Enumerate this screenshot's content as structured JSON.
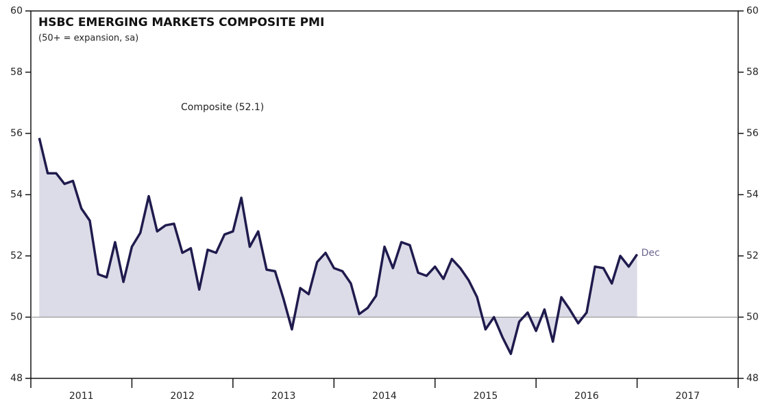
{
  "chart_data": {
    "type": "area_line",
    "title": "HSBC EMERGING MARKETS COMPOSITE PMI",
    "subtitle": "(50+ = expansion, sa)",
    "annotations": [
      "Composite (52.1)",
      "Dec"
    ],
    "x": [
      "2011-01",
      "2011-02",
      "2011-03",
      "2011-04",
      "2011-05",
      "2011-06",
      "2011-07",
      "2011-08",
      "2011-09",
      "2011-10",
      "2011-11",
      "2011-12",
      "2012-01",
      "2012-02",
      "2012-03",
      "2012-04",
      "2012-05",
      "2012-06",
      "2012-07",
      "2012-08",
      "2012-09",
      "2012-10",
      "2012-11",
      "2012-12",
      "2013-01",
      "2013-02",
      "2013-03",
      "2013-04",
      "2013-05",
      "2013-06",
      "2013-07",
      "2013-08",
      "2013-09",
      "2013-10",
      "2013-11",
      "2013-12",
      "2014-01",
      "2014-02",
      "2014-03",
      "2014-04",
      "2014-05",
      "2014-06",
      "2014-07",
      "2014-08",
      "2014-09",
      "2014-10",
      "2014-11",
      "2014-12",
      "2015-01",
      "2015-02",
      "2015-03",
      "2015-04",
      "2015-05",
      "2015-06",
      "2015-07",
      "2015-08",
      "2015-09",
      "2015-10",
      "2015-11",
      "2015-12",
      "2016-01",
      "2016-02",
      "2016-03",
      "2016-04",
      "2016-05",
      "2016-06",
      "2016-07",
      "2016-08",
      "2016-09",
      "2016-10",
      "2016-11",
      "2016-12"
    ],
    "series": [
      {
        "name": "Composite",
        "color": "#1f1b4d",
        "fill": "#dcdce8",
        "values": [
          55.85,
          54.7,
          54.7,
          54.35,
          54.45,
          53.55,
          53.15,
          51.4,
          51.3,
          52.45,
          51.15,
          52.3,
          52.75,
          53.95,
          52.8,
          53.0,
          53.05,
          52.1,
          52.25,
          50.9,
          52.2,
          52.1,
          52.7,
          52.8,
          53.9,
          52.3,
          52.8,
          51.55,
          51.5,
          50.6,
          49.6,
          50.95,
          50.75,
          51.8,
          52.1,
          51.6,
          51.5,
          51.1,
          50.1,
          50.3,
          50.7,
          52.3,
          51.6,
          52.45,
          52.35,
          51.45,
          51.35,
          51.65,
          51.25,
          51.9,
          51.6,
          51.2,
          50.65,
          49.6,
          50.0,
          49.35,
          48.8,
          49.85,
          50.15,
          49.55,
          50.25,
          49.2,
          50.65,
          50.25,
          49.8,
          50.15,
          51.65,
          51.6,
          51.1,
          52.0,
          51.65,
          52.05
        ]
      }
    ],
    "xlim": [
      "2010-12",
      "2017-12"
    ],
    "xticks": [
      "2010-12",
      "2011-12",
      "2012-12",
      "2013-12",
      "2014-12",
      "2015-12",
      "2016-12",
      "2017-12"
    ],
    "year_labels": [
      "2011",
      "2012",
      "2013",
      "2014",
      "2015",
      "2016",
      "2017"
    ],
    "ylim": [
      48,
      60
    ],
    "yticks": [
      48,
      50,
      52,
      54,
      56,
      58,
      60
    ],
    "reference_line": 50,
    "grid": false
  }
}
